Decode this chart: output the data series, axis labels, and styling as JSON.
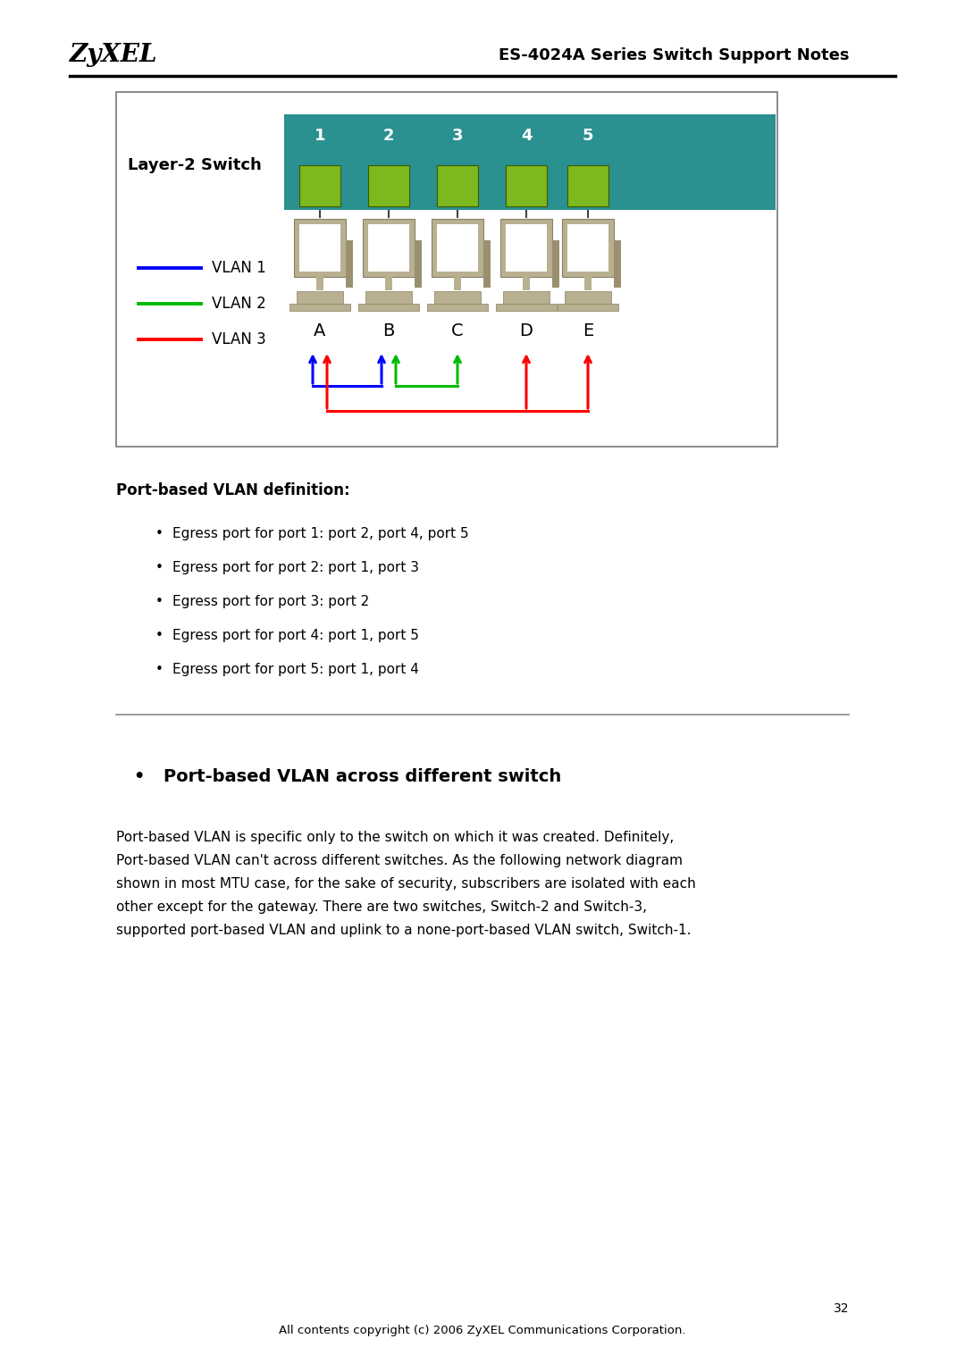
{
  "page_width": 10.8,
  "page_height": 15.27,
  "bg_color": "#ffffff",
  "header_zyxel": "ZyXEL",
  "header_title": "ES-4024A Series Switch Support Notes",
  "switch_color": "#2a9090",
  "switch_port_color": "#7db81e",
  "port_labels": [
    "1",
    "2",
    "3",
    "4",
    "5"
  ],
  "node_labels": [
    "A",
    "B",
    "C",
    "D",
    "E"
  ],
  "vlan1_color": "#0000ff",
  "vlan2_color": "#00bb00",
  "vlan3_color": "#ff0000",
  "vlan_label1": "VLAN 1",
  "vlan_label2": "VLAN 2",
  "vlan_label3": "VLAN 3",
  "layer2_label": "Layer-2 Switch",
  "section_title": "Port-based VLAN definition",
  "colon": ":",
  "bullet_items": [
    "Egress port for port 1: port 2, port 4, port 5",
    "Egress port for port 2: port 1, port 3",
    "Egress port for port 3: port 2",
    "Egress port for port 4: port 1, port 5",
    "Egress port for port 5: port 1, port 4"
  ],
  "section2_title": "Port-based VLAN across different switch",
  "body_lines": [
    "Port-based VLAN is specific only to the switch on which it was created. Definitely,",
    "Port-based VLAN can't across different switches. As the following network diagram",
    "shown in most MTU case, for the sake of security, subscribers are isolated with each",
    "other except for the gateway. There are two switches, Switch-2 and Switch-3,",
    "supported port-based VLAN and uplink to a none-port-based VLAN switch, Switch-1."
  ],
  "footer_text": "All contents copyright (c) 2006 ZyXEL Communications Corporation.",
  "page_number": "32"
}
